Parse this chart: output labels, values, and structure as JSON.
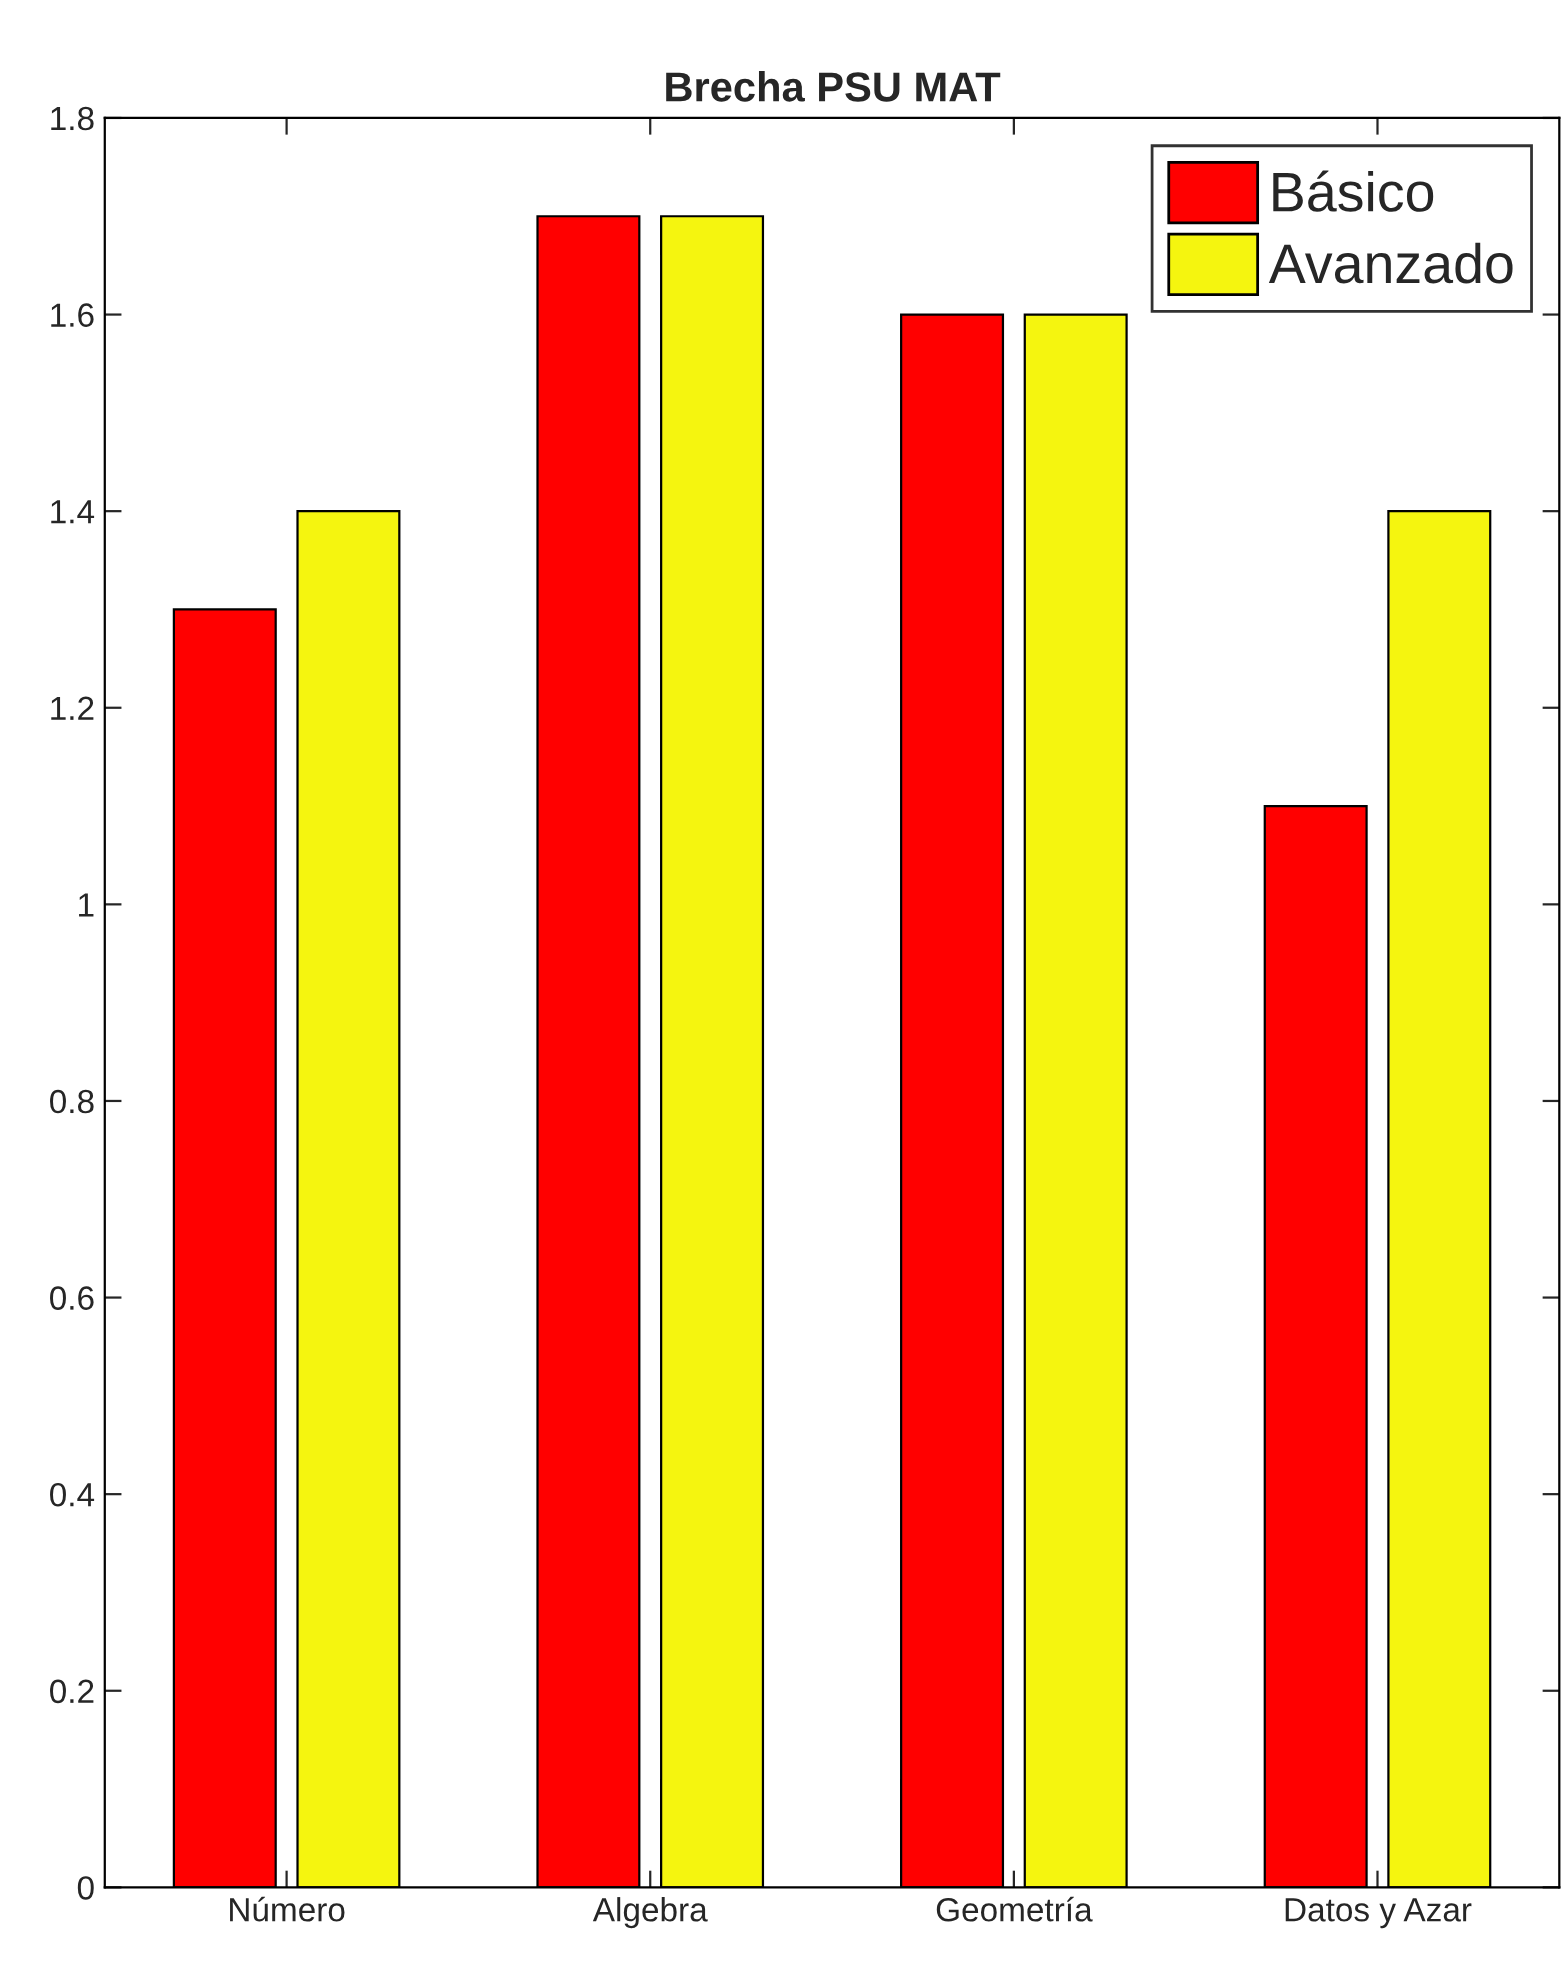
{
  "chart_data": {
    "type": "bar",
    "title": "Brecha PSU MAT",
    "categories": [
      "Número",
      "Algebra",
      "Geometría",
      "Datos y Azar"
    ],
    "series": [
      {
        "name": "Básico",
        "color": "#ff0000",
        "values": [
          1.3,
          1.7,
          1.6,
          1.1
        ]
      },
      {
        "name": "Avanzado",
        "color": "#f5f50f",
        "values": [
          1.4,
          1.7,
          1.6,
          1.4
        ]
      }
    ],
    "ylim": [
      0,
      1.8
    ],
    "yticks": [
      0,
      0.2,
      0.4,
      0.6,
      0.8,
      1,
      1.2,
      1.4,
      1.6,
      1.8
    ],
    "grid": false,
    "legend": "top right"
  }
}
